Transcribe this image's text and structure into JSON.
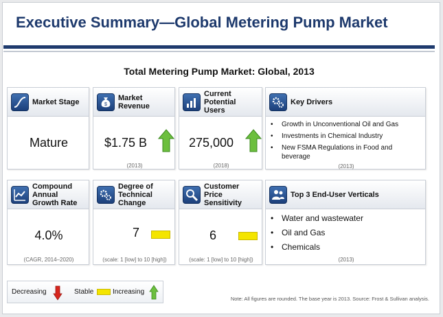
{
  "title": "Executive Summary—Global Metering Pump Market",
  "subtitle": "Total Metering Pump Market: Global, 2013",
  "colors": {
    "navy": "#1e3a6d",
    "trend_green": "#6cbf3e",
    "trend_yellow": "#f4e500",
    "trend_red": "#d7261e"
  },
  "cards": {
    "market_stage": {
      "label": "Market Stage",
      "icon": "s-curve-icon",
      "value": "Mature"
    },
    "market_revenue": {
      "label": "Market Revenue",
      "icon": "money-bag-icon",
      "value": "$1.75 B",
      "note": "(2013)",
      "trend": "increasing"
    },
    "potential_users": {
      "label": "Current Potential Users",
      "icon": "bar-chart-icon",
      "value": "275,000",
      "note": "(2018)",
      "trend": "increasing"
    },
    "key_drivers": {
      "label": "Key Drivers",
      "icon": "gears-icon",
      "items": [
        "Growth in Unconventional Oil and Gas",
        "Investments in Chemical Industry",
        "New FSMA Regulations in Food and beverage"
      ],
      "note": "(2013)"
    },
    "cagr": {
      "label": "Compound Annual Growth Rate",
      "icon": "line-chart-icon",
      "value": "4.0%",
      "note": "(CAGR, 2014–2020)"
    },
    "tech_change": {
      "label": "Degree of Technical Change",
      "icon": "gears-icon",
      "value": "7",
      "note": "(scale: 1 [low] to 10 [high])",
      "trend": "stable"
    },
    "price_sensitivity": {
      "label": "Customer Price Sensitivity",
      "icon": "magnifier-icon",
      "value": "6",
      "note": "(scale: 1 [low] to 10 [high])",
      "trend": "stable"
    },
    "verticals": {
      "label": "Top 3 End-User Verticals",
      "icon": "people-icon",
      "items": [
        "Water and wastewater",
        "Oil and Gas",
        "Chemicals"
      ],
      "note": "(2013)"
    }
  },
  "legend": {
    "decreasing": "Decreasing",
    "stable": "Stable",
    "increasing": "Increasing"
  },
  "footnote": "Note: All figures are rounded. The base year is 2013. Source: Frost & Sullivan analysis."
}
